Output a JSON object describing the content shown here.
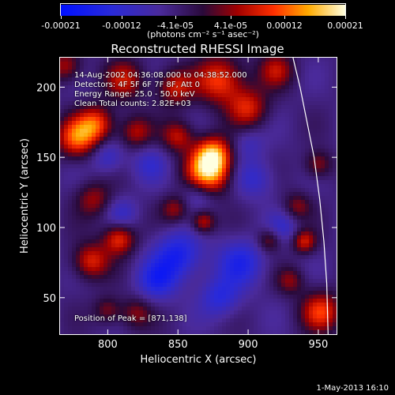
{
  "colorbar": {
    "min": -0.00021,
    "max": 0.00021,
    "ticks": [
      {
        "value": -0.00021,
        "label": "-0.00021"
      },
      {
        "value": -0.00012,
        "label": "-0.00012"
      },
      {
        "value": -4.1e-05,
        "label": "-4.1e-05"
      },
      {
        "value": 4.1e-05,
        "label": "4.1e-05"
      },
      {
        "value": 0.00012,
        "label": "0.00012"
      },
      {
        "value": 0.00021,
        "label": "0.00021"
      }
    ],
    "units": "(photons cm⁻² s⁻¹ asec⁻²)"
  },
  "annotations": {
    "time_range": "14-Aug-2002 04:36:08.000 to 04:38:52.000",
    "detectors": "Detectors: 4F 5F 6F 7F 8F, Att 0",
    "energy": "Energy Range: 25.0 - 50.0 keV",
    "clean": "Clean     Total counts: 2.82E+03",
    "peak": "Position of Peak = [871,138]"
  },
  "footer": "1-May-2013 16:10",
  "chart_data": {
    "type": "heatmap",
    "title": "Reconstructed RHESSI Image",
    "xlabel": "Heliocentric X (arcsec)",
    "ylabel": "Heliocentric Y (arcsec)",
    "xlim": [
      766,
      963
    ],
    "ylim": [
      24,
      221
    ],
    "xticks": [
      800,
      850,
      900,
      950
    ],
    "yticks": [
      50,
      100,
      150,
      200
    ],
    "limb_curve": [
      [
        932,
        221
      ],
      [
        937,
        200
      ],
      [
        942,
        175
      ],
      [
        947,
        150
      ],
      [
        951,
        120
      ],
      [
        954,
        90
      ],
      [
        956,
        60
      ],
      [
        957,
        24
      ]
    ],
    "blobs": [
      {
        "x": 871,
        "y": 138,
        "amp": 0.00021,
        "r": 11
      },
      {
        "x": 875,
        "y": 152,
        "amp": 0.00018,
        "r": 9
      },
      {
        "x": 778,
        "y": 164,
        "amp": 0.00016,
        "r": 10
      },
      {
        "x": 792,
        "y": 174,
        "amp": 0.00014,
        "r": 9
      },
      {
        "x": 880,
        "y": 205,
        "amp": 0.00015,
        "r": 12
      },
      {
        "x": 848,
        "y": 200,
        "amp": 0.00012,
        "r": 9
      },
      {
        "x": 812,
        "y": 205,
        "amp": 0.00011,
        "r": 10
      },
      {
        "x": 900,
        "y": 185,
        "amp": 0.00012,
        "r": 10
      },
      {
        "x": 920,
        "y": 212,
        "amp": 0.0001,
        "r": 9
      },
      {
        "x": 820,
        "y": 168,
        "amp": 0.0001,
        "r": 8
      },
      {
        "x": 850,
        "y": 165,
        "amp": 0.00011,
        "r": 8
      },
      {
        "x": 790,
        "y": 120,
        "amp": 9e-05,
        "r": 9
      },
      {
        "x": 808,
        "y": 92,
        "amp": 0.00014,
        "r": 8
      },
      {
        "x": 788,
        "y": 76,
        "amp": 0.00013,
        "r": 9
      },
      {
        "x": 848,
        "y": 113,
        "amp": 9e-05,
        "r": 7
      },
      {
        "x": 868,
        "y": 104,
        "amp": 0.00012,
        "r": 6
      },
      {
        "x": 915,
        "y": 91,
        "amp": 9e-05,
        "r": 6
      },
      {
        "x": 940,
        "y": 90,
        "amp": 0.00012,
        "r": 6
      },
      {
        "x": 952,
        "y": 40,
        "amp": 0.00014,
        "r": 10
      },
      {
        "x": 820,
        "y": 39,
        "amp": 8e-05,
        "r": 8
      },
      {
        "x": 800,
        "y": 41,
        "amp": 8e-05,
        "r": 7
      },
      {
        "x": 930,
        "y": 62,
        "amp": 8e-05,
        "r": 7
      },
      {
        "x": 935,
        "y": 115,
        "amp": 8e-05,
        "r": 7
      },
      {
        "x": 950,
        "y": 145,
        "amp": 9e-05,
        "r": 7
      },
      {
        "x": 770,
        "y": 215,
        "amp": 0.0001,
        "r": 8
      },
      {
        "x": 830,
        "y": 145,
        "amp": -6e-05,
        "r": 9
      },
      {
        "x": 800,
        "y": 150,
        "amp": -7e-05,
        "r": 8
      },
      {
        "x": 850,
        "y": 80,
        "amp": -0.00012,
        "r": 12
      },
      {
        "x": 895,
        "y": 75,
        "amp": -0.0001,
        "r": 12
      },
      {
        "x": 880,
        "y": 50,
        "amp": -9e-05,
        "r": 10
      },
      {
        "x": 835,
        "y": 62,
        "amp": -0.0001,
        "r": 10
      },
      {
        "x": 865,
        "y": 125,
        "amp": -8e-05,
        "r": 9
      },
      {
        "x": 905,
        "y": 135,
        "amp": -7e-05,
        "r": 10
      },
      {
        "x": 925,
        "y": 100,
        "amp": -6e-05,
        "r": 8
      },
      {
        "x": 900,
        "y": 160,
        "amp": -5e-05,
        "r": 8
      },
      {
        "x": 810,
        "y": 110,
        "amp": -6e-05,
        "r": 8
      }
    ]
  }
}
